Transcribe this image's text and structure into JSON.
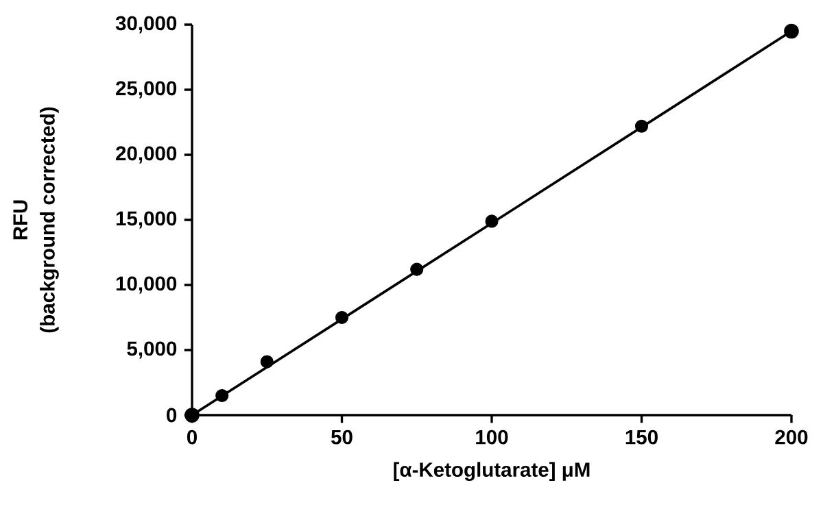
{
  "chart_data": {
    "type": "scatter",
    "xlabel": "[α-Ketoglutarate] μM",
    "ylabel": "RFU",
    "annotations": [
      "(background corrected)"
    ],
    "series": [
      {
        "color": "#000000",
        "x": [
          0,
          10,
          25,
          50,
          75,
          100,
          150,
          200
        ],
        "values": [
          0,
          1500,
          4100,
          7500,
          11200,
          14900,
          22200,
          29500
        ]
      },
      {
        "type": "line",
        "color": "#000000",
        "x": [
          0,
          200
        ],
        "values": [
          0,
          29500
        ]
      }
    ],
    "marker": "circle",
    "xlim": [
      0,
      200
    ],
    "ylim": [
      0,
      30000
    ],
    "xticks": [
      0,
      50,
      100,
      150,
      200
    ],
    "yticks": [
      0,
      {
        "value": 5000,
        "label": "5,000"
      },
      {
        "value": 10000,
        "label": "10,000"
      },
      {
        "value": 15000,
        "label": "15,000"
      },
      {
        "value": 20000,
        "label": "20,000"
      },
      {
        "value": 25000,
        "label": "25,000"
      },
      {
        "value": 30000,
        "label": "30,000"
      }
    ],
    "grid": false
  }
}
